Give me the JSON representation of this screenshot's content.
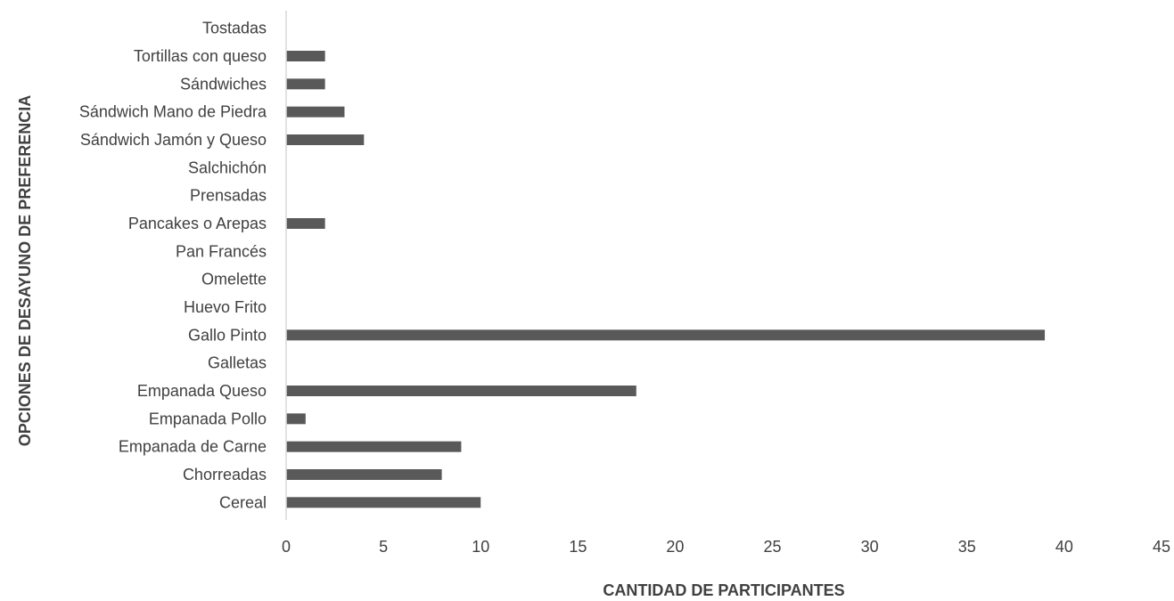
{
  "chart_data": {
    "type": "bar",
    "orientation": "horizontal",
    "categories": [
      "Cereal",
      "Chorreadas",
      "Empanada de Carne",
      "Empanada Pollo",
      "Empanada Queso",
      "Galletas",
      "Gallo Pinto",
      "Huevo Frito",
      "Omelette",
      "Pan Francés",
      "Pancakes o Arepas",
      "Prensadas",
      "Salchichón",
      "Sándwich Jamón y Queso",
      "Sándwich Mano de Piedra",
      "Sándwiches",
      "Tortillas con queso",
      "Tostadas"
    ],
    "values": [
      10,
      8,
      9,
      1,
      18,
      0,
      39,
      0,
      0,
      0,
      2,
      0,
      0,
      4,
      3,
      2,
      2,
      0
    ],
    "title": "",
    "xlabel": "CANTIDAD DE PARTICIPANTES",
    "ylabel": "OPCIONES DE DESAYUNO DE PREFERENCIA",
    "xlim": [
      0,
      45
    ],
    "xticks": [
      0,
      5,
      10,
      15,
      20,
      25,
      30,
      35,
      40,
      45
    ],
    "grid": false,
    "legend": "none",
    "bar_color": "#595959",
    "axis_color": "#d9d9d9",
    "text_color": "#404040"
  }
}
